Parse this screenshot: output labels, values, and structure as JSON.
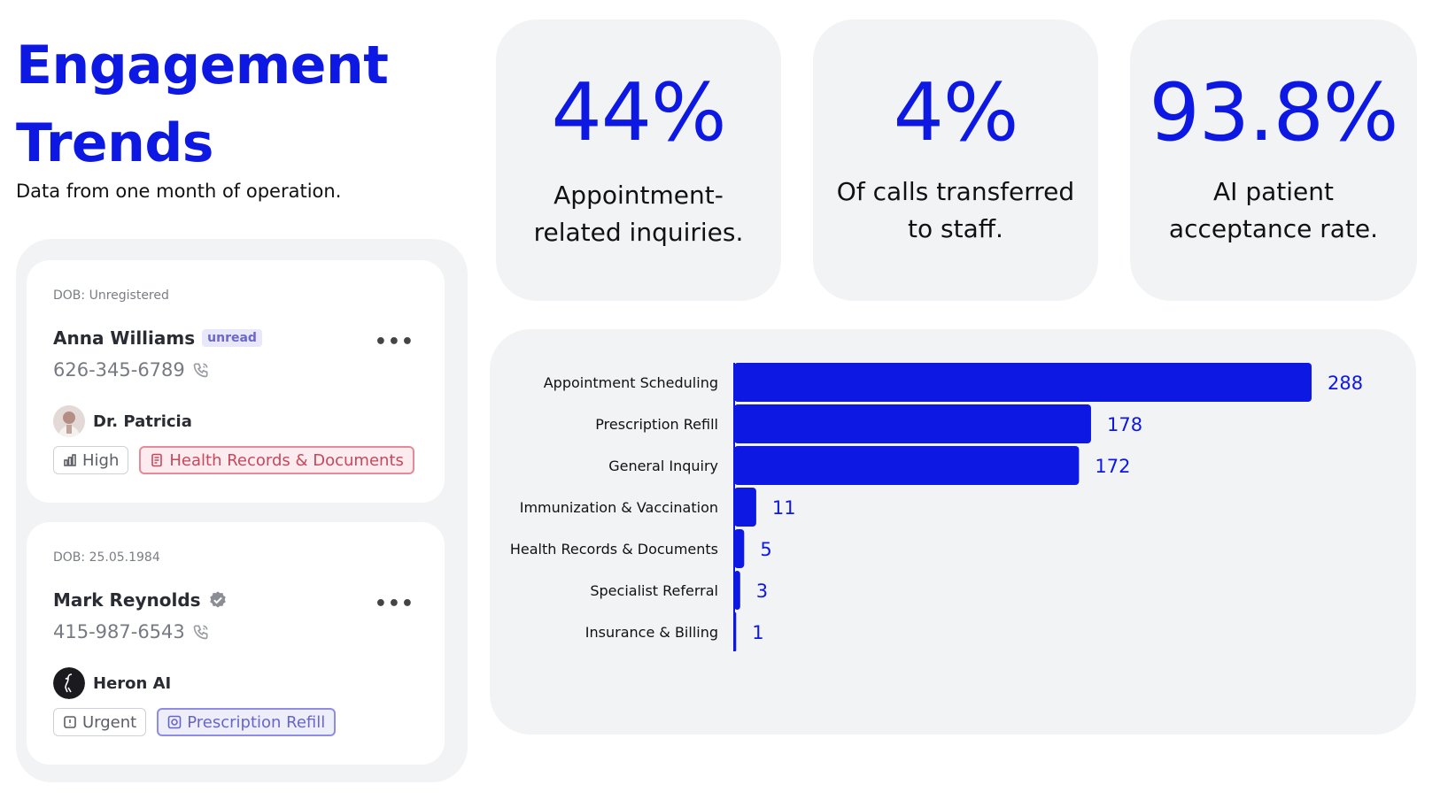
{
  "header": {
    "title_line1": "Engagement",
    "title_line2": "Trends",
    "subtitle": "Data from one month of operation."
  },
  "cards": [
    {
      "dob": "DOB: Unregistered",
      "name": "Anna Williams",
      "badge": "unread",
      "phone": "626-345-6789",
      "assignee": "Dr. Patricia",
      "priority": "High",
      "category": "Health Records & Documents"
    },
    {
      "dob": "DOB: 25.05.1984",
      "name": "Mark Reynolds",
      "phone": "415-987-6543",
      "assignee": "Heron AI",
      "priority": "Urgent",
      "category": "Prescription Refill"
    }
  ],
  "more_label": "•••",
  "stats": [
    {
      "value": "44%",
      "desc_line1": "Appointment-",
      "desc_line2": "related inquiries."
    },
    {
      "value": "4%",
      "desc_line1": "Of calls transferred",
      "desc_line2": "to staff."
    },
    {
      "value": "93.8%",
      "desc_line1": "AI patient",
      "desc_line2": "acceptance rate."
    }
  ],
  "colors": {
    "accent": "#0d18e3",
    "panel_bg": "#f2f3f5",
    "tag_red": "#c8475c",
    "tag_purple": "#6765cc"
  },
  "chart_data": {
    "type": "bar",
    "orientation": "horizontal",
    "categories": [
      "Appointment Scheduling",
      "Prescription Refill",
      "General Inquiry",
      "Immunization & Vaccination",
      "Health Records & Documents",
      "Specialist Referral",
      "Insurance & Billing"
    ],
    "values": [
      288,
      178,
      172,
      11,
      5,
      3,
      1
    ],
    "title": "",
    "xlabel": "",
    "ylabel": "",
    "xlim": [
      0,
      288
    ],
    "grid": false,
    "legend": "none",
    "color": "#0d18e3"
  }
}
